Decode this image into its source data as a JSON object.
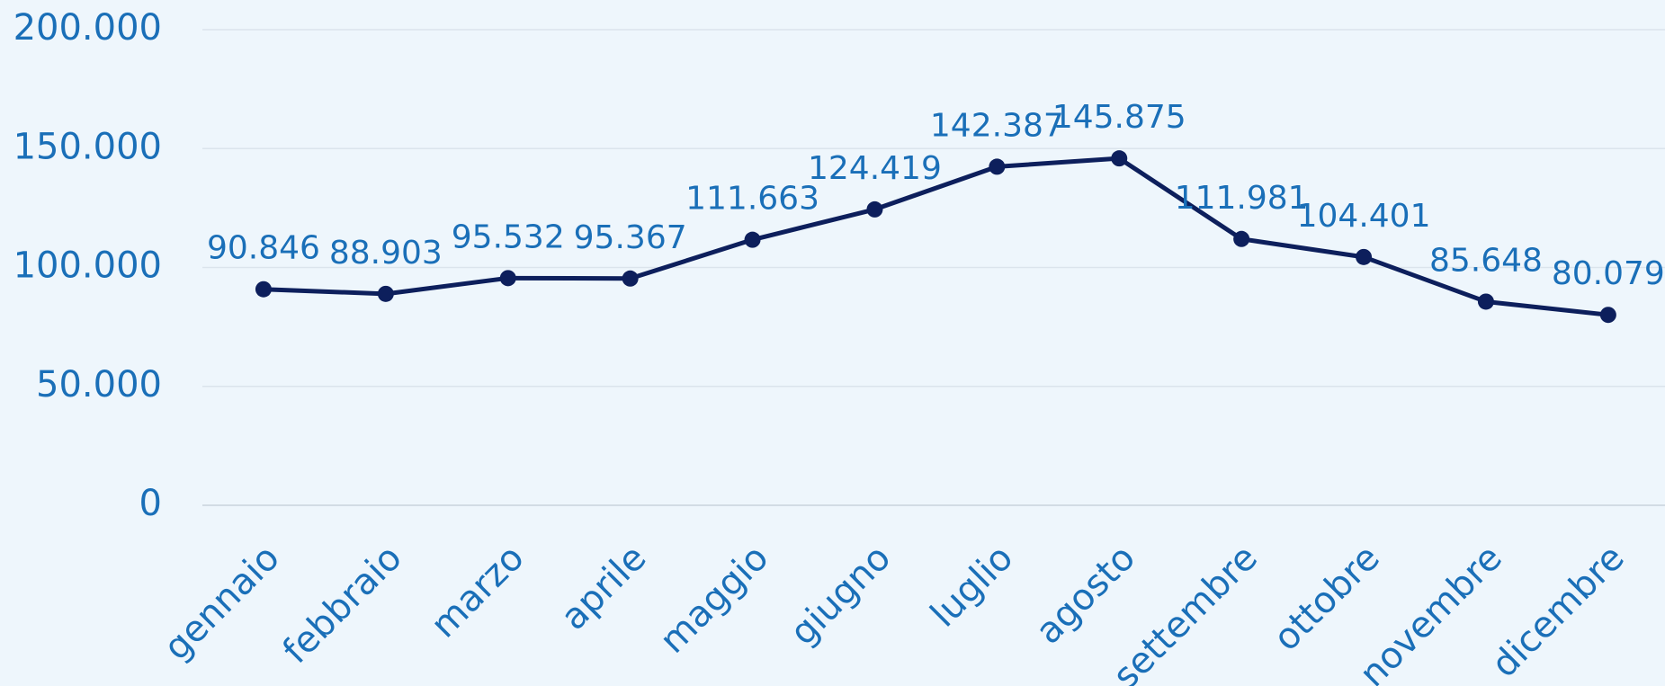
{
  "chart_data": {
    "type": "line",
    "categories": [
      "gennaio",
      "febbraio",
      "marzo",
      "aprile",
      "maggio",
      "giugno",
      "luglio",
      "agosto",
      "settembre",
      "ottobre",
      "novembre",
      "dicembre"
    ],
    "series": [
      {
        "color": "#0d1f5c",
        "values": [
          90846,
          88903,
          95532,
          95367,
          111663,
          124419,
          142387,
          145875,
          111981,
          104401,
          85648,
          80079
        ],
        "value_labels": [
          "90.846",
          "88.903",
          "95.532",
          "95.367",
          "111.663",
          "124.419",
          "142.387",
          "145.875",
          "111.981",
          "104.401",
          "85.648",
          "80.079"
        ]
      }
    ],
    "ylim": [
      0,
      200000
    ],
    "yticks": [
      0,
      {
        "value": 50000,
        "label": "50.000"
      },
      {
        "value": 100000,
        "label": "100.000"
      },
      {
        "value": 150000,
        "label": "150.000"
      },
      {
        "value": 200000,
        "label": "200.000"
      }
    ],
    "grid": true
  }
}
